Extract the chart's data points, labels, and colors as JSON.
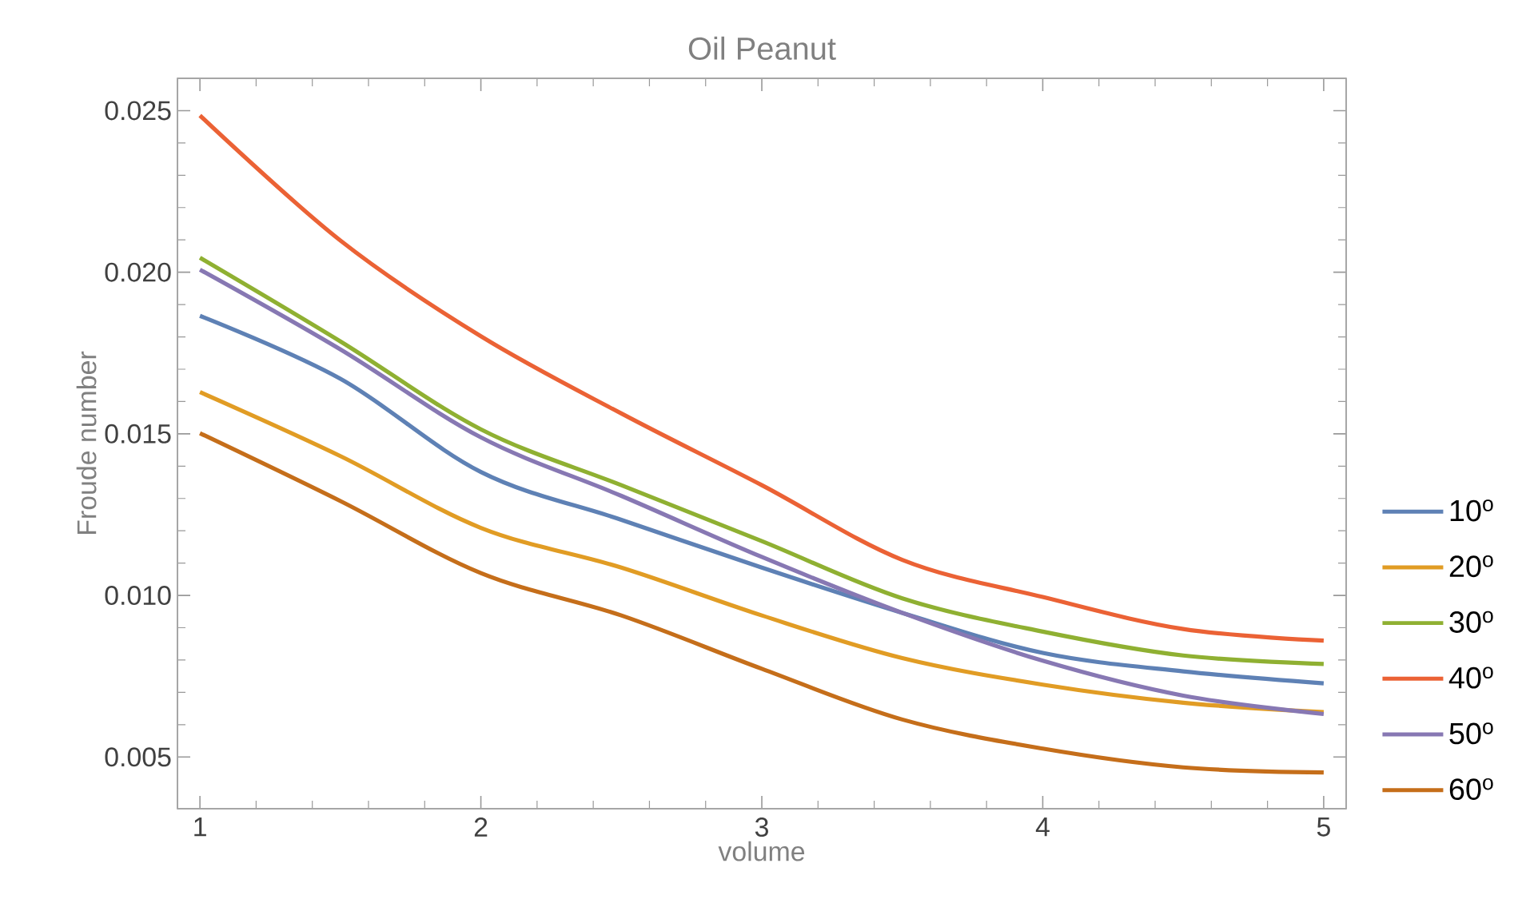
{
  "chart_data": {
    "type": "line",
    "title": "Oil Peanut",
    "xlabel": "volume",
    "ylabel": "Froude number",
    "x": [
      1,
      1.5,
      2,
      2.5,
      3,
      3.5,
      4,
      4.5,
      5
    ],
    "series": [
      {
        "name": "10$^{o}$",
        "color": "#5e81b5",
        "values": [
          0.01865,
          0.0167,
          0.01382,
          0.01234,
          0.01086,
          0.00946,
          0.00822,
          0.00765,
          0.00728
        ]
      },
      {
        "name": "20$^{o}$",
        "color": "#e19c24",
        "values": [
          0.01629,
          0.01431,
          0.01209,
          0.01086,
          0.00938,
          0.00806,
          0.00724,
          0.00668,
          0.00639
        ]
      },
      {
        "name": "30$^{o}$",
        "color": "#8fb032",
        "values": [
          0.02045,
          0.01786,
          0.01514,
          0.01341,
          0.01168,
          0.00991,
          0.00888,
          0.00814,
          0.00788
        ]
      },
      {
        "name": "40$^{o}$",
        "color": "#eb6235",
        "values": [
          0.02485,
          0.02098,
          0.01802,
          0.01563,
          0.01341,
          0.0111,
          0.00995,
          0.00896,
          0.0086
        ]
      },
      {
        "name": "50$^{o}$",
        "color": "#8778b3",
        "values": [
          0.02008,
          0.01761,
          0.01489,
          0.01308,
          0.01119,
          0.00946,
          0.00798,
          0.0069,
          0.00633
        ]
      },
      {
        "name": "60$^{o}$",
        "color": "#c56e1a",
        "values": [
          0.01502,
          0.01292,
          0.01069,
          0.00938,
          0.00773,
          0.00616,
          0.00526,
          0.00468,
          0.00452
        ]
      }
    ],
    "xlim": [
      0.92,
      5.08
    ],
    "ylim": [
      0.0034,
      0.026
    ],
    "xticks": [
      1,
      2,
      3,
      4,
      5
    ],
    "yticks": [
      0.005,
      {
        "value": 0.01,
        "label": "0.010"
      },
      0.015,
      {
        "value": 0.02,
        "label": "0.020"
      },
      0.025
    ],
    "grid": false,
    "legend": "right",
    "marker": "none",
    "line_style": "solid"
  }
}
